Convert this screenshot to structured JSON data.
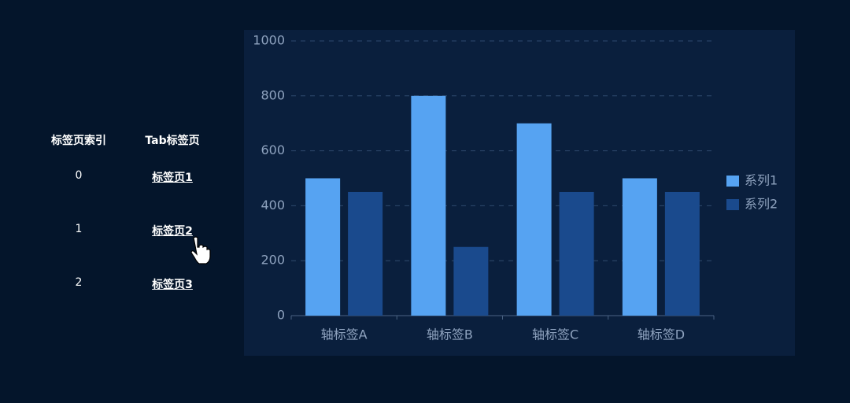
{
  "table": {
    "headers": [
      "标签页索引",
      "Tab标签页"
    ],
    "rows": [
      [
        0,
        "标签页1"
      ],
      [
        1,
        "标签页2"
      ],
      [
        2,
        "标签页3"
      ]
    ]
  },
  "chart_data": {
    "type": "bar",
    "categories": [
      "轴标签A",
      "轴标签B",
      "轴标签C",
      "轴标签D"
    ],
    "series": [
      {
        "name": "系列1",
        "color": "#56a3f2",
        "values": [
          500,
          800,
          700,
          500
        ]
      },
      {
        "name": "系列2",
        "color": "#1a4a8d",
        "values": [
          450,
          250,
          450,
          450
        ]
      }
    ],
    "ylim": [
      0,
      1000
    ],
    "yticks": [
      0,
      200,
      400,
      600,
      800,
      1000
    ],
    "grid": true,
    "legend": "right"
  }
}
